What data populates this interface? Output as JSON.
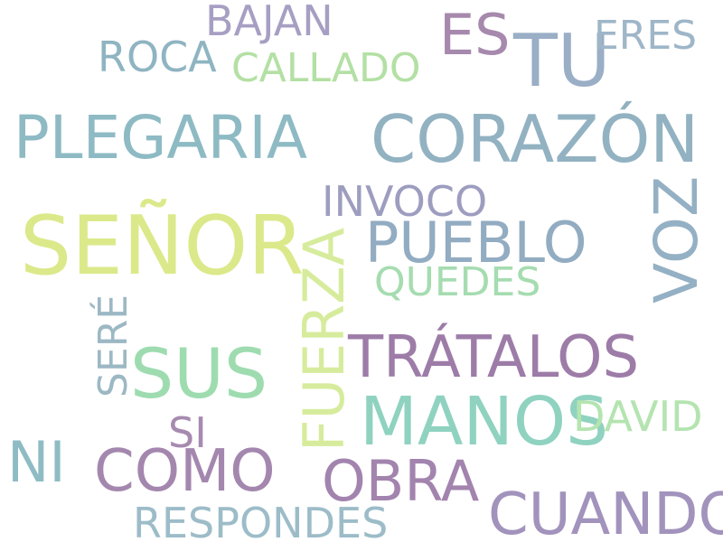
{
  "words": {
    "senor": {
      "text": "SEÑOR",
      "color": "#dbe98a"
    },
    "corazon": {
      "text": "CORAZÓN",
      "color": "#92b2c2"
    },
    "tu": {
      "text": "TU",
      "color": "#9aaec6"
    },
    "es": {
      "text": "ES",
      "color": "#a689ad"
    },
    "eres": {
      "text": "ERES",
      "color": "#9eb6c8"
    },
    "bajan": {
      "text": "BAJAN",
      "color": "#a79fc3"
    },
    "roca": {
      "text": "ROCA",
      "color": "#8fb4c2"
    },
    "callado": {
      "text": "CALLADO",
      "color": "#b3e0a4"
    },
    "plegaria": {
      "text": "PLEGARIA",
      "color": "#8ebac4"
    },
    "invoco": {
      "text": "INVOCO",
      "color": "#9d9dc0"
    },
    "pueblo": {
      "text": "PUEBLO",
      "color": "#92acc2"
    },
    "quedes": {
      "text": "QUEDES",
      "color": "#a5dcb0"
    },
    "tratalos": {
      "text": "TRÁTALOS",
      "color": "#9d7ca8"
    },
    "manos": {
      "text": "MANOS",
      "color": "#8fd2c0"
    },
    "david": {
      "text": "DAVID",
      "color": "#b4e4b0"
    },
    "obra": {
      "text": "OBRA",
      "color": "#a284ae"
    },
    "cuando": {
      "text": "CUANDO",
      "color": "#a293bd"
    },
    "responde": {
      "text": "RESPONDES",
      "color": "#9cbcc8"
    },
    "como": {
      "text": "COMO",
      "color": "#a487ae"
    },
    "si": {
      "text": "SI",
      "color": "#a78ab0"
    },
    "ni": {
      "text": "NI",
      "color": "#8fbcc4"
    },
    "sus": {
      "text": "SUS",
      "color": "#9edcb0"
    },
    "sere": {
      "text": "SERÉ",
      "color": "#9cb8c4"
    },
    "fuerza": {
      "text": "FUERZA",
      "color": "#d6ec9c"
    },
    "voz": {
      "text": "VOZ",
      "color": "#94b0c4"
    }
  }
}
